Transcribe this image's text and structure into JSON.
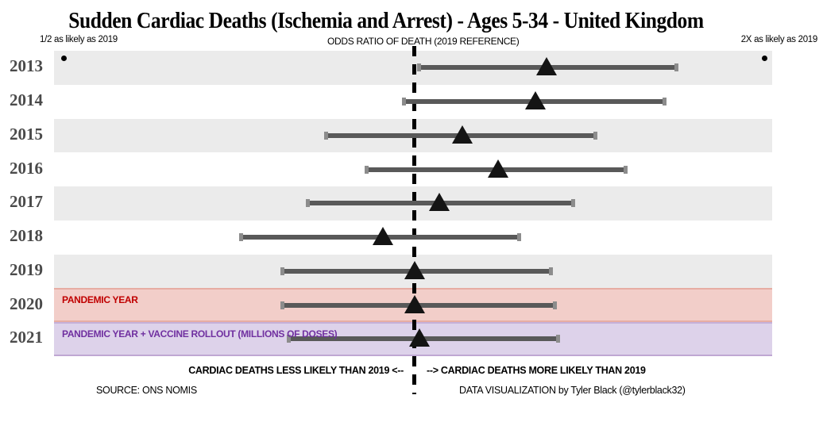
{
  "title": "Sudden Cardiac Deaths (Ischemia and Arrest) - Ages 5-34 - United Kingdom",
  "axis": {
    "left_label": "1/2 as likely as 2019",
    "center_label": "ODDS RATIO OF DEATH (2019 REFERENCE)",
    "right_label": "2X as likely as 2019"
  },
  "footer": {
    "less_likely": "CARDIAC DEATHS LESS LIKELY THAN 2019 <--",
    "more_likely": "--> CARDIAC DEATHS MORE LIKELY THAN 2019",
    "source": "SOURCE: ONS NOMIS",
    "credit": "DATA VISUALIZATION by Tyler Black (@tylerblack32)"
  },
  "colors": {
    "band_gray": "#ebebeb",
    "band_pink": "#f2cec9",
    "band_purple": "#ddd2ea",
    "pandemic_label": "#c00000",
    "vaccine_label": "#7030a0",
    "bar": "#595959",
    "cap": "#8c8c8c",
    "marker": "#141414",
    "year_label": "#4a4a4a",
    "dot": "#000000"
  },
  "chart_data": {
    "type": "scatter",
    "subtype": "forest-plot-odds-ratio",
    "title": "Sudden Cardiac Deaths (Ischemia and Arrest) - Ages 5-34 - United Kingdom",
    "xlabel": "ODDS RATIO OF DEATH (2019 REFERENCE)",
    "x_scale": "log2",
    "x_domain": [
      0.5,
      2.0
    ],
    "reference_year": "2019",
    "reference_dots": [
      0.5,
      2.0
    ],
    "grid": false,
    "legend": "none",
    "rows": [
      {
        "year": "2013",
        "or": 1.3,
        "low": 1.01,
        "high": 1.68,
        "band": "gray"
      },
      {
        "year": "2014",
        "or": 1.27,
        "low": 0.98,
        "high": 1.64,
        "band": "white"
      },
      {
        "year": "2015",
        "or": 1.1,
        "low": 0.84,
        "high": 1.43,
        "band": "gray"
      },
      {
        "year": "2016",
        "or": 1.18,
        "low": 0.91,
        "high": 1.52,
        "band": "white"
      },
      {
        "year": "2017",
        "or": 1.05,
        "low": 0.81,
        "high": 1.37,
        "band": "gray"
      },
      {
        "year": "2018",
        "or": 0.94,
        "low": 0.71,
        "high": 1.23,
        "band": "white"
      },
      {
        "year": "2019",
        "or": 1.0,
        "low": 0.77,
        "high": 1.31,
        "band": "gray"
      },
      {
        "year": "2020",
        "or": 1.0,
        "low": 0.77,
        "high": 1.32,
        "band": "pink",
        "row_label": "PANDEMIC YEAR",
        "row_label_color": "#c00000"
      },
      {
        "year": "2021",
        "or": 1.01,
        "low": 0.78,
        "high": 1.33,
        "band": "purple",
        "row_label": "PANDEMIC YEAR + VACCINE ROLLOUT (MILLIONS OF DOSES)",
        "row_label_color": "#7030a0"
      }
    ]
  }
}
